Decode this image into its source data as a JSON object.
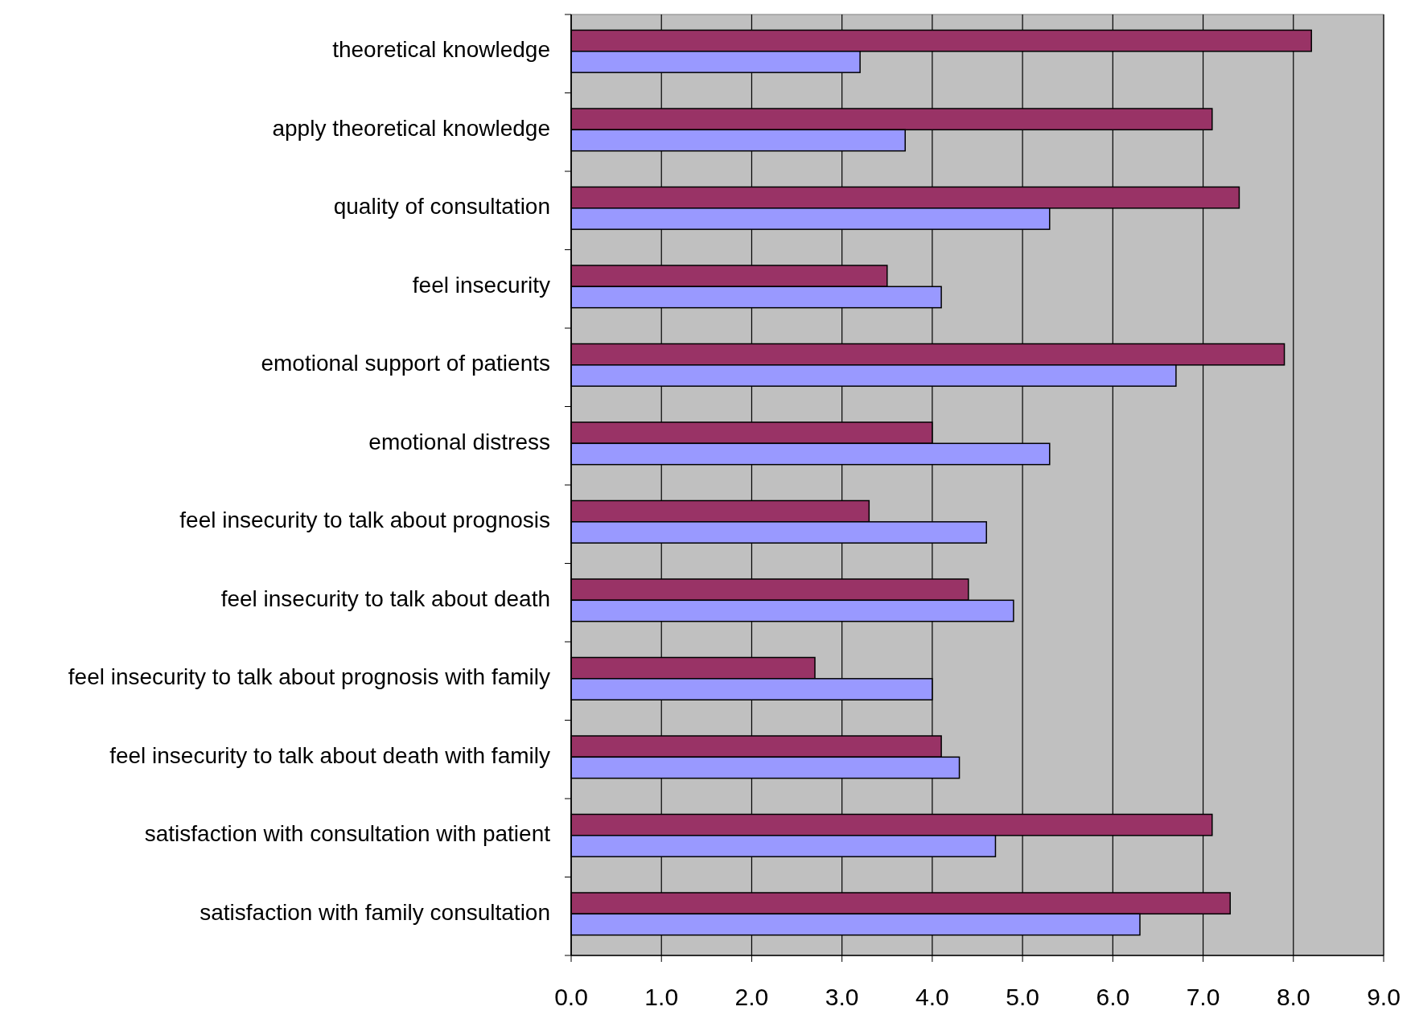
{
  "chart_data": {
    "type": "bar",
    "orientation": "horizontal",
    "categories": [
      "theoretical knowledge",
      "apply theoretical knowledge",
      "quality of consultation",
      "feel insecurity",
      "emotional support of patients",
      "emotional distress",
      "feel insecurity to talk about prognosis",
      "feel insecurity to talk about death",
      "feel insecurity to talk about prognosis with family",
      "feel insecurity to talk about death with family",
      "satisfaction with consultation with patient",
      "satisfaction with family consultation"
    ],
    "series": [
      {
        "color": "#993366",
        "values": [
          8.2,
          7.1,
          7.4,
          3.5,
          7.9,
          4.0,
          3.3,
          4.4,
          2.7,
          4.1,
          7.1,
          7.3
        ]
      },
      {
        "color": "#9999ff",
        "values": [
          3.2,
          3.7,
          5.3,
          4.1,
          6.7,
          5.3,
          4.6,
          4.9,
          4.0,
          4.3,
          4.7,
          6.3
        ]
      }
    ],
    "xlim": [
      0,
      9
    ],
    "xticks": [
      {
        "value": 0,
        "label": "0.0"
      },
      {
        "value": 1,
        "label": "1.0"
      },
      {
        "value": 2,
        "label": "2.0"
      },
      {
        "value": 3,
        "label": "3.0"
      },
      {
        "value": 4,
        "label": "4.0"
      },
      {
        "value": 5,
        "label": "5.0"
      },
      {
        "value": 6,
        "label": "6.0"
      },
      {
        "value": 7,
        "label": "7.0"
      },
      {
        "value": 8,
        "label": "8.0"
      },
      {
        "value": 9,
        "label": "9.0"
      }
    ],
    "grid": "x"
  }
}
